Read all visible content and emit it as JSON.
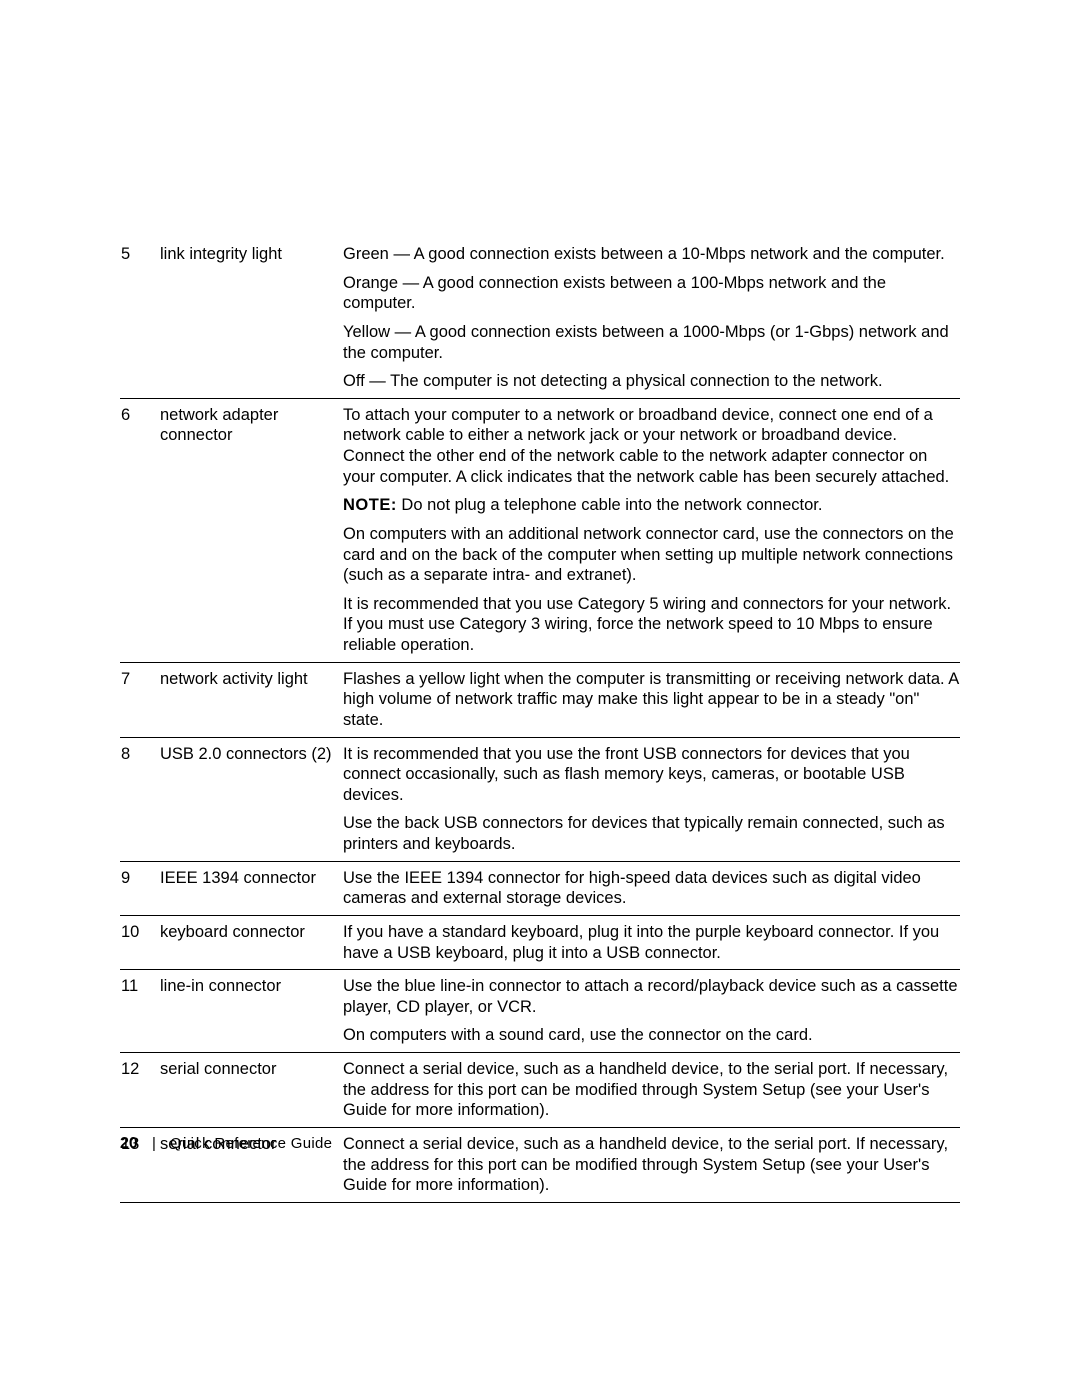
{
  "footer": {
    "page_number": "20",
    "title": "Quick Reference Guide"
  },
  "rows": [
    {
      "num": "5",
      "label": "link integrity light",
      "blocks": [
        "Green — A good connection exists between a 10-Mbps network and the computer.",
        "Orange — A good connection exists between a 100-Mbps network and the computer.",
        "Yellow — A good connection exists between a 1000-Mbps (or 1-Gbps) network and the computer.",
        "Off — The computer is not detecting a physical connection to the network."
      ]
    },
    {
      "num": "6",
      "label": "network adapter connector",
      "blocks": [
        "To attach your computer to a network or broadband device, connect one end of a network cable to either a network jack or your network or broadband device. Connect the other end of the network cable to the network adapter connector on your computer. A click indicates that the network cable has been securely attached.",
        {
          "note": true,
          "label": "NOTE:",
          "text": " Do not plug a telephone cable into the network connector."
        },
        "On computers with an additional network connector card, use the connectors on the card and on the back of the computer when setting up multiple network connections (such as a separate intra- and extranet).",
        "It is recommended that you use Category 5 wiring and connectors for your network. If you must use Category 3 wiring, force the network speed to 10 Mbps to ensure reliable operation."
      ]
    },
    {
      "num": "7",
      "label": "network activity light",
      "blocks": [
        "Flashes a yellow light when the computer is transmitting or receiving network data. A high volume of network traffic may make this light appear to be in a steady \"on\" state."
      ]
    },
    {
      "num": "8",
      "label": "USB 2.0 connectors (2)",
      "blocks": [
        "It is recommended that you use the front USB connectors for devices that you connect occasionally, such as flash memory keys, cameras, or bootable USB devices.",
        "Use the back USB connectors for devices that typically remain connected, such as printers and keyboards."
      ]
    },
    {
      "num": "9",
      "label": "IEEE 1394 connector",
      "blocks": [
        "Use the IEEE 1394 connector for high-speed data devices such as digital video cameras and external storage devices."
      ]
    },
    {
      "num": "10",
      "label": "keyboard connector",
      "blocks": [
        "If you have a standard keyboard, plug it into the purple keyboard connector. If you have a USB keyboard, plug it into a USB connector."
      ]
    },
    {
      "num": "11",
      "label": "line-in connector",
      "blocks": [
        "Use the blue line-in connector to attach a record/playback device such as a cassette player, CD player, or VCR.",
        "On computers with a sound card, use the connector on the card."
      ]
    },
    {
      "num": "12",
      "label": "serial connector",
      "blocks": [
        "Connect a serial device, such as a handheld device, to the serial port. If necessary, the address for this port can be modified through System Setup (see your User's Guide for more information)."
      ]
    },
    {
      "num": "13",
      "label": "serial connector",
      "blocks": [
        "Connect a serial device, such as a handheld device, to the serial port. If necessary, the address for this port can be modified through System Setup (see your User's Guide for more information)."
      ]
    }
  ]
}
